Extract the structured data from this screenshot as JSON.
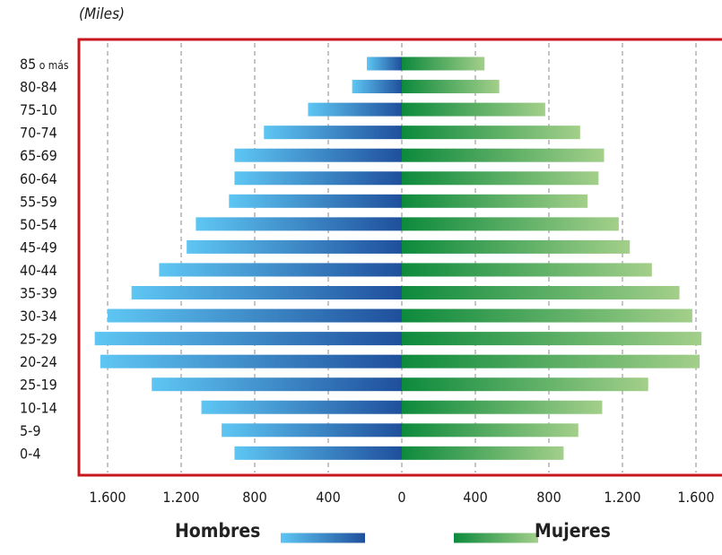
{
  "chart_data": {
    "type": "bar",
    "orientation": "horizontal",
    "units_label": "(Miles)",
    "categories": [
      "85 o más",
      "80-84",
      "75-10",
      "70-74",
      "65-69",
      "60-64",
      "55-59",
      "50-54",
      "45-49",
      "40-44",
      "35-39",
      "30-34",
      "25-29",
      "20-24",
      "25-19",
      "10-14",
      "5-9",
      "0-4"
    ],
    "series": [
      {
        "name": "Hombres",
        "values": [
          190,
          270,
          510,
          750,
          910,
          910,
          940,
          1120,
          1170,
          1320,
          1470,
          1600,
          1670,
          1640,
          1360,
          1090,
          980,
          910
        ]
      },
      {
        "name": "Mujeres",
        "values": [
          450,
          530,
          780,
          970,
          1100,
          1070,
          1010,
          1180,
          1240,
          1360,
          1510,
          1580,
          1630,
          1620,
          1340,
          1090,
          960,
          880
        ]
      }
    ],
    "x_ticks": [
      "1.600",
      "1.200",
      "800",
      "400",
      "0",
      "400",
      "800",
      "1.200",
      "1.600"
    ],
    "x_tick_values": [
      -1600,
      -1200,
      -800,
      -400,
      0,
      400,
      800,
      1200,
      1600
    ],
    "xlim": [
      -1600,
      1600
    ],
    "grid": true,
    "legend_position": "bottom",
    "colors": {
      "hombres_light": "#5ec6f3",
      "hombres_dark": "#1f4f9c",
      "mujeres_dark": "#0d8a3c",
      "mujeres_light": "#a3cf8a",
      "frame": "#c8161e",
      "grid": "#8a8a8a"
    }
  }
}
